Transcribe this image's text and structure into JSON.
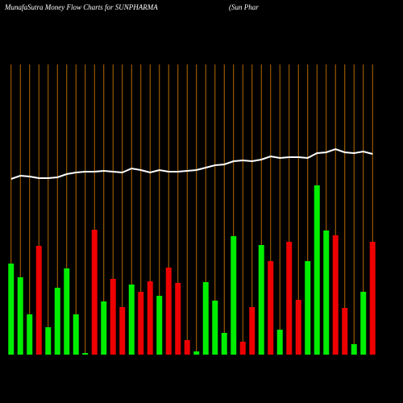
{
  "chart_data": {
    "type": "bar",
    "title": "MunafaSutra  Money Flow  Charts for SUNPHARMA",
    "subtitle": "(Sun  Phar",
    "categories": [
      null,
      null,
      null,
      null,
      null,
      null,
      null,
      null,
      null,
      null,
      null,
      null,
      null,
      null,
      null,
      null,
      null,
      null,
      null,
      null,
      null,
      null,
      null,
      null,
      null,
      null,
      null,
      null,
      null,
      null,
      null,
      null,
      null,
      null,
      null,
      null,
      null,
      null,
      null,
      null
    ],
    "values": [
      113,
      96,
      50,
      135,
      34,
      83,
      107,
      50,
      2,
      155,
      66,
      94,
      59,
      87,
      78,
      91,
      73,
      108,
      89,
      18,
      4,
      90,
      67,
      27,
      147,
      16,
      59,
      136,
      116,
      31,
      140,
      68,
      116,
      210,
      154,
      148,
      58,
      13,
      78,
      140
    ],
    "colors": [
      "#00ee00",
      "#00ee00",
      "#00ee00",
      "#ee0000",
      "#00ee00",
      "#00ee00",
      "#00ee00",
      "#00ee00",
      "#00ee00",
      "#ee0000",
      "#00ee00",
      "#ee0000",
      "#ee0000",
      "#00ee00",
      "#ee0000",
      "#ee0000",
      "#00ee00",
      "#ee0000",
      "#ee0000",
      "#ee0000",
      "#00ee00",
      "#00ee00",
      "#00ee00",
      "#00ee00",
      "#00ee00",
      "#ee0000",
      "#ee0000",
      "#00ee00",
      "#ee0000",
      "#00ee00",
      "#ee0000",
      "#ee0000",
      "#00ee00",
      "#00ee00",
      "#00ee00",
      "#ee0000",
      "#ee0000",
      "#00ee00",
      "#00ee00",
      "#ee0000"
    ],
    "line": {
      "color": "#ffffff",
      "values": [
        218,
        222,
        221,
        219,
        219,
        220,
        224,
        226,
        227,
        227,
        228,
        227,
        226,
        231,
        229,
        226,
        229,
        227,
        227,
        228,
        229,
        232,
        235,
        236,
        240,
        241,
        240,
        242,
        246,
        244,
        245,
        245,
        244,
        250,
        251,
        255,
        251,
        250,
        252,
        249
      ]
    },
    "gridline_color": "#b86a00"
  }
}
